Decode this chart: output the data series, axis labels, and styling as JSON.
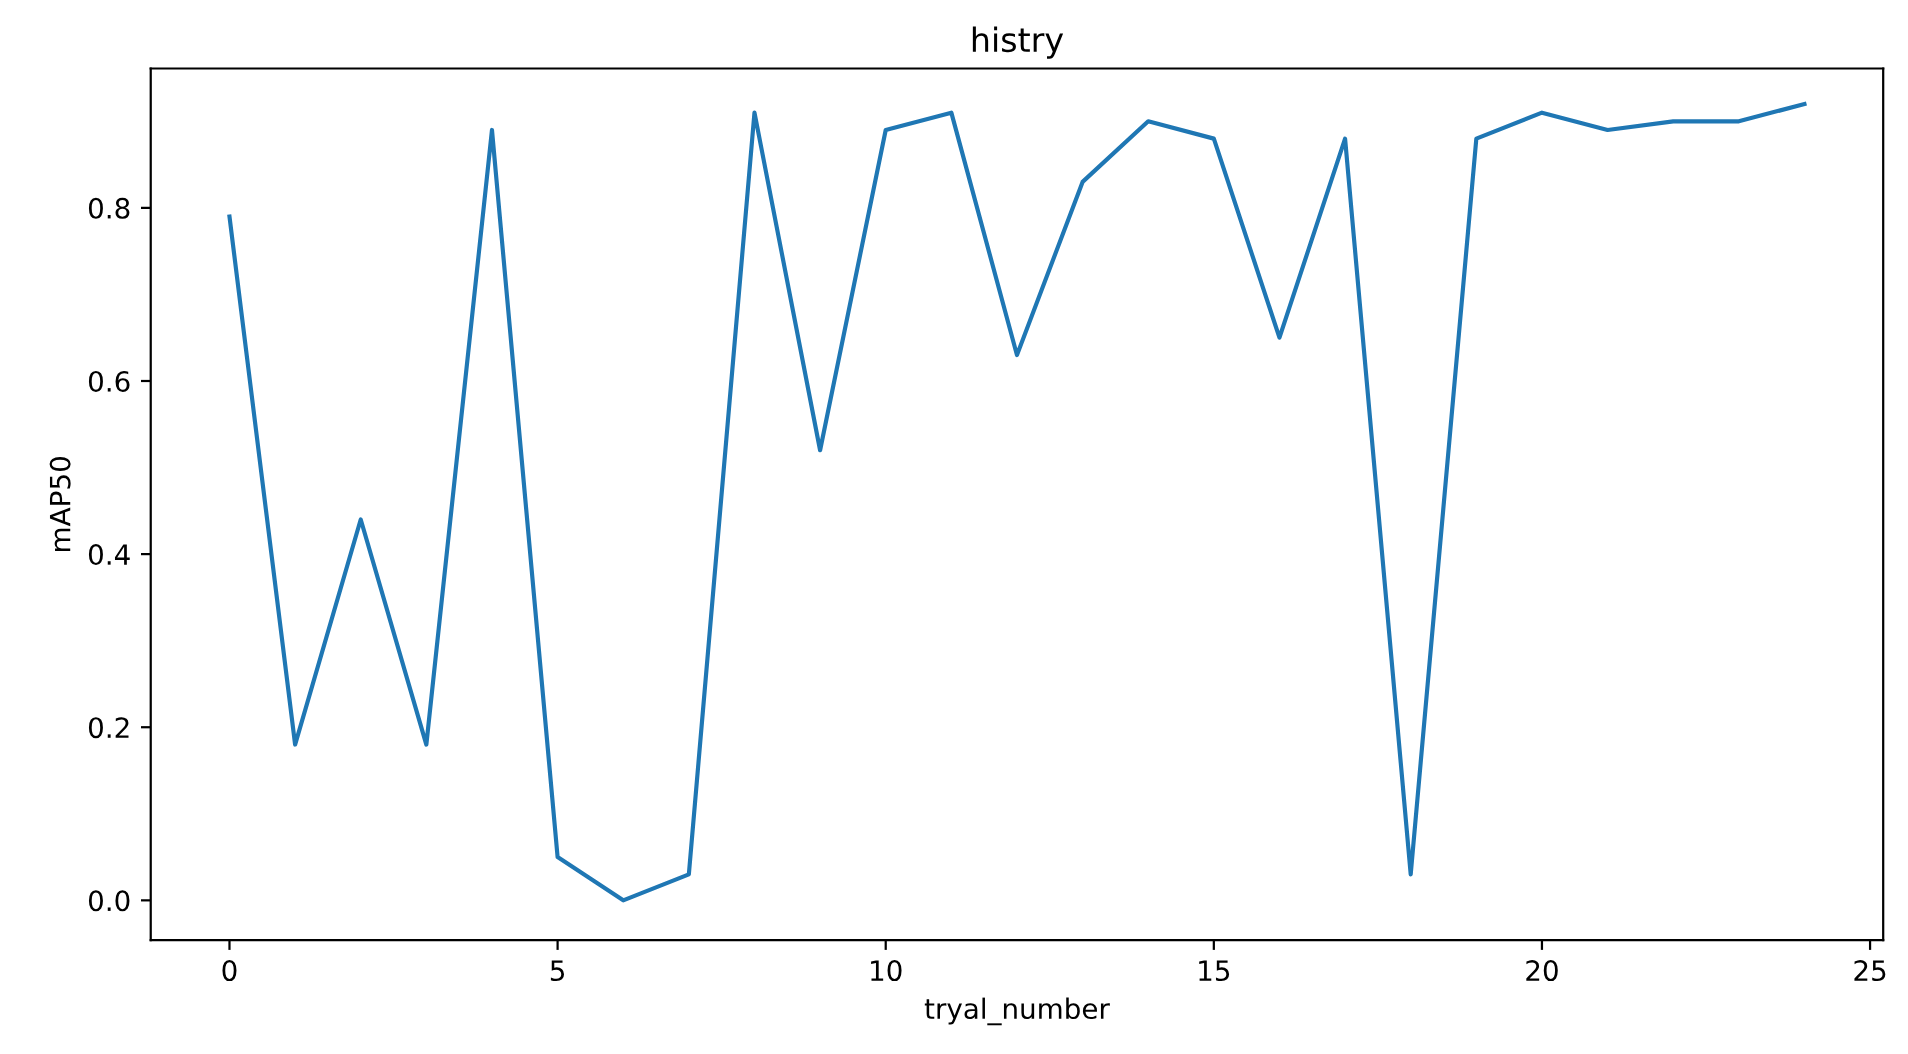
{
  "chart_data": {
    "type": "line",
    "title": "histry",
    "xlabel": "tryal_number",
    "ylabel": "mAP50",
    "x": [
      0,
      1,
      2,
      3,
      4,
      5,
      6,
      7,
      8,
      9,
      10,
      11,
      12,
      13,
      14,
      15,
      16,
      17,
      18,
      19,
      20,
      21,
      22,
      23,
      24
    ],
    "series": [
      {
        "color": "#1f77b4",
        "values": [
          0.79,
          0.18,
          0.44,
          0.18,
          0.89,
          0.05,
          0.0,
          0.03,
          0.91,
          0.52,
          0.89,
          0.91,
          0.63,
          0.83,
          0.9,
          0.88,
          0.65,
          0.88,
          0.03,
          0.88,
          0.91,
          0.89,
          0.9,
          0.9,
          0.92
        ]
      }
    ],
    "xlim": [
      -1.2,
      25.2
    ],
    "ylim": [
      -0.046,
      0.961
    ],
    "xticks": [
      0,
      5,
      10,
      15,
      20,
      25
    ],
    "yticks": [
      {
        "value": 0,
        "label": "0.0"
      },
      {
        "value": 0.2,
        "label": "0.2"
      },
      {
        "value": 0.4,
        "label": "0.4"
      },
      {
        "value": 0.6,
        "label": "0.6"
      },
      {
        "value": 0.8,
        "label": "0.8"
      }
    ],
    "grid": false,
    "legend": false
  }
}
